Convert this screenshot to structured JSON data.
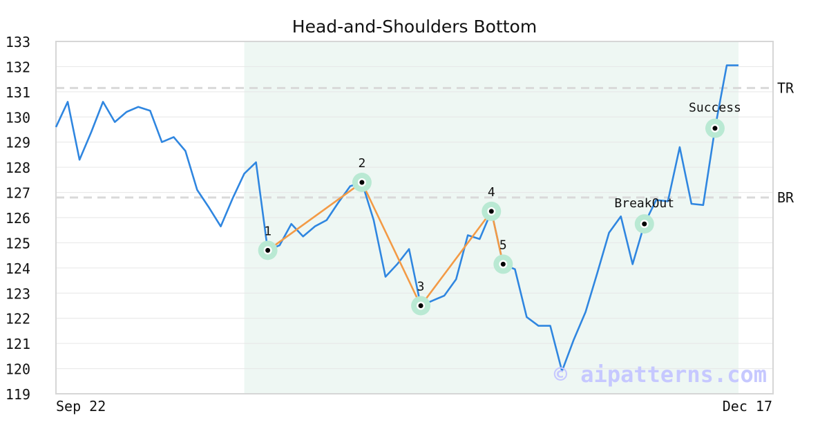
{
  "chart_data": {
    "type": "line",
    "title": "Head-and-Shoulders Bottom",
    "xlabel": "",
    "ylabel": "",
    "ylim": [
      119,
      133
    ],
    "yticks": [
      119,
      120,
      121,
      122,
      123,
      124,
      125,
      126,
      127,
      128,
      129,
      130,
      131,
      132,
      133
    ],
    "x_tick_labels": [
      "Sep 22",
      "Dec 17"
    ],
    "grid": "horizontal",
    "colors": {
      "price_line": "#2f86e0",
      "pattern_line": "#f39a45",
      "marker_halo": "#b9e9d3",
      "marker_dot": "#000000",
      "pattern_zone": "#eef7f3",
      "level_line": "#d9d9d9",
      "watermark": "#c6c8ff"
    },
    "pattern_zone": {
      "x_start": 16,
      "x_end": 58
    },
    "series": [
      {
        "values": [
          129.6,
          130.6,
          128.3,
          129.4,
          130.6,
          129.8,
          130.2,
          130.4,
          130.25,
          129.0,
          129.2,
          128.65,
          127.1,
          126.4,
          125.65,
          126.75,
          127.75,
          128.2,
          124.7,
          124.9,
          125.75,
          125.25,
          125.65,
          125.9,
          126.6,
          127.25,
          127.4,
          125.9,
          123.65,
          124.15,
          124.75,
          122.5,
          122.7,
          122.9,
          123.55,
          125.3,
          125.15,
          126.25,
          124.15,
          123.95,
          122.05,
          121.7,
          121.7,
          119.9,
          121.15,
          122.25,
          123.8,
          125.4,
          126.05,
          124.15,
          125.75,
          126.7,
          126.65,
          128.8,
          126.55,
          126.5,
          129.55,
          132.05,
          132.05
        ]
      }
    ],
    "levels": [
      {
        "label": "TR",
        "value": 131.15
      },
      {
        "label": "BR",
        "value": 126.8
      }
    ],
    "pattern_points": [
      {
        "label": "1",
        "x": 18,
        "y": 124.7
      },
      {
        "label": "2",
        "x": 26,
        "y": 127.4
      },
      {
        "label": "3",
        "x": 31,
        "y": 122.5
      },
      {
        "label": "4",
        "x": 37,
        "y": 126.25
      },
      {
        "label": "5",
        "x": 38,
        "y": 124.15
      }
    ],
    "events": [
      {
        "label": "BreakOut",
        "x": 50,
        "y": 125.75
      },
      {
        "label": "Success",
        "x": 56,
        "y": 129.55
      }
    ],
    "watermark": "© aipatterns.com"
  }
}
